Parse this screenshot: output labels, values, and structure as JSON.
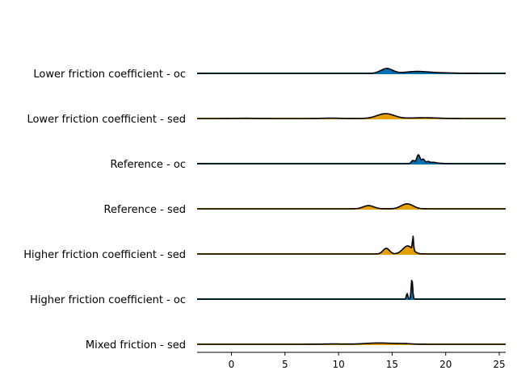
{
  "chart_data": {
    "type": "area",
    "title": "",
    "xlabel": "",
    "ylabel": "",
    "xlim": [
      -3.2,
      25.6
    ],
    "xticks": [
      0,
      5,
      10,
      15,
      20,
      25
    ],
    "grid": false,
    "legend": "none",
    "colors": {
      "oc": "#0072B2",
      "sed": "#E69F00",
      "outline": "#000000"
    },
    "series": [
      {
        "name": "Lower friction coefficient - oc",
        "group": "oc",
        "components": [
          {
            "mean": 14.5,
            "sd": 0.55,
            "weight": 0.3
          },
          {
            "mean": 17.2,
            "sd": 1.0,
            "weight": 0.1
          },
          {
            "mean": 19.0,
            "sd": 1.5,
            "weight": 0.04
          }
        ]
      },
      {
        "name": "Lower friction coefficient - sed",
        "group": "sed",
        "components": [
          {
            "mean": 14.4,
            "sd": 0.8,
            "weight": 0.3
          },
          {
            "mean": 9.3,
            "sd": 0.8,
            "weight": 0.025
          },
          {
            "mean": 1.3,
            "sd": 1.0,
            "weight": 0.015
          },
          {
            "mean": 18.0,
            "sd": 1.2,
            "weight": 0.05
          }
        ]
      },
      {
        "name": "Reference - oc",
        "group": "oc",
        "components": [
          {
            "mean": 17.45,
            "sd": 0.15,
            "weight": 0.55
          },
          {
            "mean": 16.95,
            "sd": 0.15,
            "weight": 0.2
          },
          {
            "mean": 17.9,
            "sd": 0.15,
            "weight": 0.28
          },
          {
            "mean": 18.35,
            "sd": 0.15,
            "weight": 0.12
          },
          {
            "mean": 18.8,
            "sd": 0.25,
            "weight": 0.07
          },
          {
            "mean": 19.3,
            "sd": 0.4,
            "weight": 0.03
          }
        ]
      },
      {
        "name": "Reference - sed",
        "group": "sed",
        "components": [
          {
            "mean": 12.8,
            "sd": 0.5,
            "weight": 0.2
          },
          {
            "mean": 16.4,
            "sd": 0.55,
            "weight": 0.31
          }
        ]
      },
      {
        "name": "Higher friction coefficient - sed",
        "group": "sed",
        "components": [
          {
            "mean": 14.45,
            "sd": 0.3,
            "weight": 0.35
          },
          {
            "mean": 16.45,
            "sd": 0.45,
            "weight": 0.5
          },
          {
            "mean": 16.95,
            "sd": 0.05,
            "weight": 0.85
          }
        ]
      },
      {
        "name": "Higher friction coefficient - oc",
        "group": "oc",
        "components": [
          {
            "mean": 16.85,
            "sd": 0.07,
            "weight": 1.25
          },
          {
            "mean": 16.4,
            "sd": 0.07,
            "weight": 0.35
          }
        ]
      },
      {
        "name": "Mixed friction - sed",
        "group": "sed",
        "components": [
          {
            "mean": 13.8,
            "sd": 1.3,
            "weight": 0.08
          },
          {
            "mean": 9.5,
            "sd": 1.0,
            "weight": 0.02
          },
          {
            "mean": 16.2,
            "sd": 0.7,
            "weight": 0.03
          }
        ]
      }
    ]
  }
}
